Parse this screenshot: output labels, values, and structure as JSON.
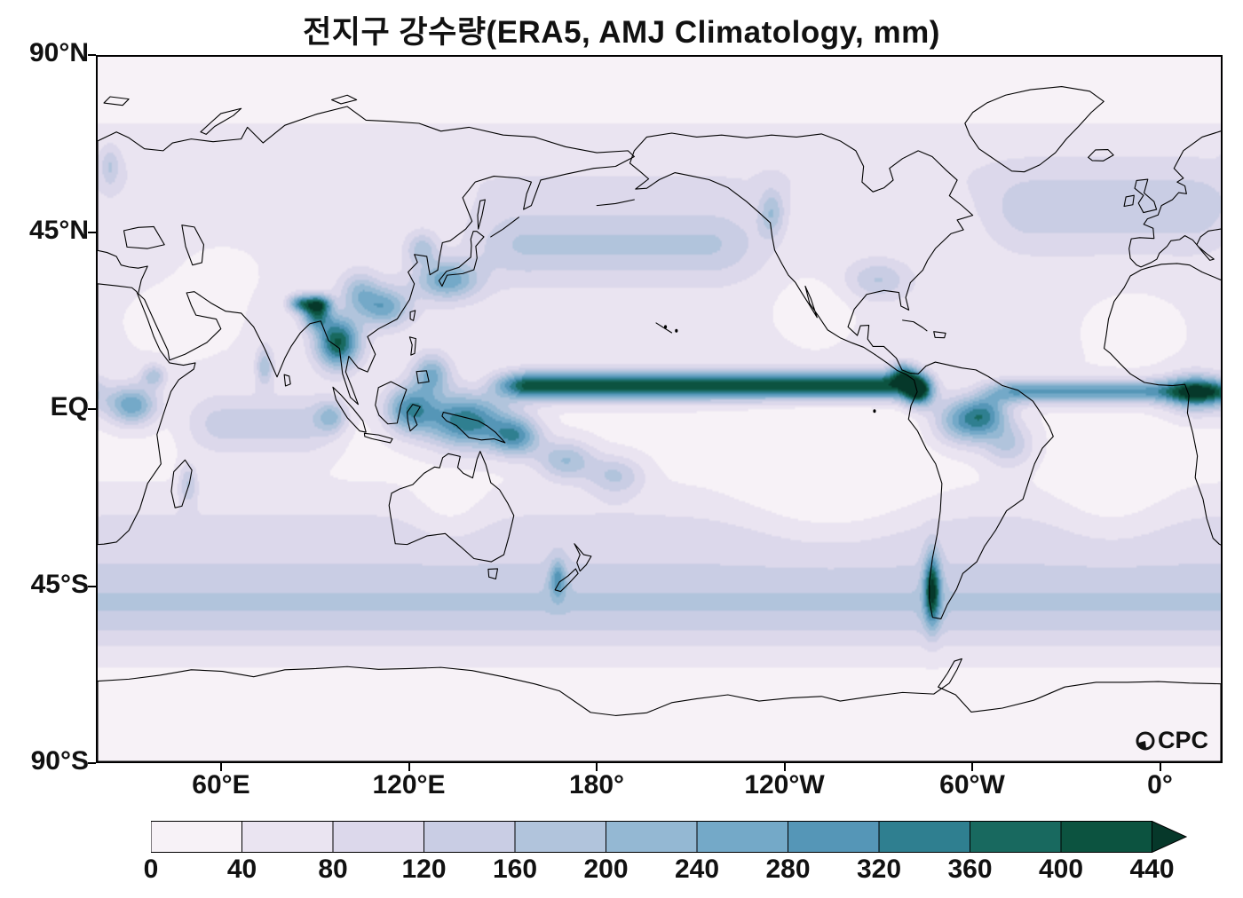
{
  "title": "전지구 강수량(ERA5, AMJ Climatology, mm)",
  "logo": {
    "text": "CPC"
  },
  "chart_data": {
    "type": "heatmap",
    "title": "전지구 강수량(ERA5, AMJ Climatology, mm)",
    "dataset": "ERA5",
    "period": "AMJ Climatology",
    "units": "mm",
    "projection": "equirectangular",
    "x_axis": {
      "lon_range": [
        20,
        380
      ],
      "ticks": [
        {
          "label": "60°E",
          "lon": 60
        },
        {
          "label": "120°E",
          "lon": 120
        },
        {
          "label": "180°",
          "lon": 180
        },
        {
          "label": "120°W",
          "lon": 240
        },
        {
          "label": "60°W",
          "lon": 300
        },
        {
          "label": "0°",
          "lon": 360
        }
      ]
    },
    "y_axis": {
      "lat_range": [
        -90,
        90
      ],
      "ticks": [
        {
          "label": "90°N",
          "lat": 90
        },
        {
          "label": "45°N",
          "lat": 45
        },
        {
          "label": "EQ",
          "lat": 0
        },
        {
          "label": "45°S",
          "lat": -45
        },
        {
          "label": "90°S",
          "lat": -90
        }
      ]
    },
    "colorbar": {
      "levels": [
        0,
        40,
        80,
        120,
        160,
        200,
        240,
        280,
        320,
        360,
        400,
        440
      ],
      "tick_labels": [
        "0",
        "40",
        "80",
        "120",
        "160",
        "200",
        "240",
        "280",
        "320",
        "360",
        "400",
        "440"
      ],
      "colors": [
        "#f7f2f7",
        "#eae4f1",
        "#dcd8eb",
        "#c9cde4",
        "#b1c4dc",
        "#94b8d3",
        "#74a9c8",
        "#5596b7",
        "#2f7f90",
        "#18695f",
        "#0c5340"
      ],
      "over_color": "#06382a",
      "over_arrow": true
    },
    "field": {
      "base": 25,
      "band_format": "gaussian in latitude with smooth longitude window, amplitude in mm",
      "bands": [
        {
          "lat": -50,
          "slat": 11,
          "amp": 135,
          "lon0": 20,
          "lon1": 380,
          "edge": 0
        },
        {
          "lat": 42,
          "slat": 9,
          "amp": 115,
          "lon0": 128,
          "lon1": 245,
          "edge": 30
        },
        {
          "lat": 50,
          "slat": 10,
          "amp": 85,
          "lon0": 295,
          "lon1": 395,
          "edge": 25
        },
        {
          "lat": 6,
          "slat": 3.5,
          "amp": 400,
          "lon0": 140,
          "lon1": 290,
          "edge": 20
        },
        {
          "lat": 4.5,
          "slat": 3,
          "amp": 250,
          "lon0": 298,
          "lon1": 395,
          "edge": 18
        },
        {
          "lat": -4,
          "slat": 8,
          "amp": 110,
          "lon0": 40,
          "lon1": 105,
          "edge": 20
        },
        {
          "lat": -84,
          "slat": 10,
          "amp": -32,
          "lon0": 20,
          "lon1": 380,
          "edge": 0
        },
        {
          "lat": 88,
          "slat": 9,
          "amp": -15,
          "lon0": 20,
          "lon1": 380,
          "edge": 0
        },
        {
          "lat": 27,
          "slat": 2.2,
          "amp": 280,
          "lon0": 78,
          "lon1": 98,
          "edge": 8
        },
        {
          "lat": -32,
          "slat": 11,
          "amp": 65,
          "lon0": 20,
          "lon1": 380,
          "edge": 0
        },
        {
          "lat": 30,
          "slat": 25,
          "amp": 30,
          "lon0": 20,
          "lon1": 380,
          "edge": 0
        },
        {
          "lat": 60,
          "slat": 12,
          "amp": 45,
          "lon0": 20,
          "lon1": 380,
          "edge": 0
        }
      ],
      "blob_format": [
        "lon",
        "lat",
        "sigma_lon",
        "sigma_lat",
        "amplitude_mm"
      ],
      "blobs": [
        [
          97,
          17,
          7,
          6.5,
          360
        ],
        [
          90,
          24,
          4.5,
          3.5,
          260
        ],
        [
          112,
          26,
          8,
          5,
          210
        ],
        [
          104,
          30,
          6,
          5,
          140
        ],
        [
          124,
          41,
          5,
          4,
          130
        ],
        [
          132,
          33,
          10,
          5,
          220
        ],
        [
          127,
          9,
          6,
          5,
          200
        ],
        [
          138,
          -3,
          13,
          7,
          320
        ],
        [
          120,
          0,
          8,
          6,
          260
        ],
        [
          95,
          -2,
          5,
          4,
          150
        ],
        [
          154,
          -7,
          8,
          5,
          250
        ],
        [
          170,
          -13,
          9,
          5,
          170
        ],
        [
          186,
          -17,
          9,
          5,
          130
        ],
        [
          283,
          5,
          5,
          4,
          430
        ],
        [
          278,
          9,
          4,
          3,
          220
        ],
        [
          298,
          -3,
          10,
          6,
          240
        ],
        [
          305,
          -1,
          7,
          5,
          160
        ],
        [
          312,
          -9,
          8,
          6,
          130
        ],
        [
          287.5,
          -46,
          2.6,
          9,
          320
        ],
        [
          270,
          33,
          10,
          5,
          110
        ],
        [
          236,
          50,
          4,
          6,
          130
        ],
        [
          24,
          62,
          3,
          5,
          90
        ],
        [
          31,
          1,
          8,
          5,
          240
        ],
        [
          38,
          8.5,
          4,
          3,
          140
        ],
        [
          372,
          4,
          9,
          5,
          230
        ],
        [
          49,
          -19,
          3,
          5,
          120
        ],
        [
          73.5,
          11,
          2.8,
          5,
          150
        ],
        [
          167.5,
          -43.5,
          2.6,
          5,
          170
        ],
        [
          255,
          -22,
          26,
          12,
          -70
        ],
        [
          345,
          -25,
          18,
          10,
          -45
        ],
        [
          47,
          24,
          18,
          8,
          -38
        ],
        [
          352,
          22,
          15,
          8,
          -40
        ],
        [
          133,
          -26,
          12,
          8,
          -42
        ],
        [
          250,
          26,
          14,
          8,
          -38
        ],
        [
          256,
          -4,
          24,
          4.5,
          -55
        ],
        [
          60,
          35,
          15,
          8,
          -25
        ]
      ]
    }
  }
}
